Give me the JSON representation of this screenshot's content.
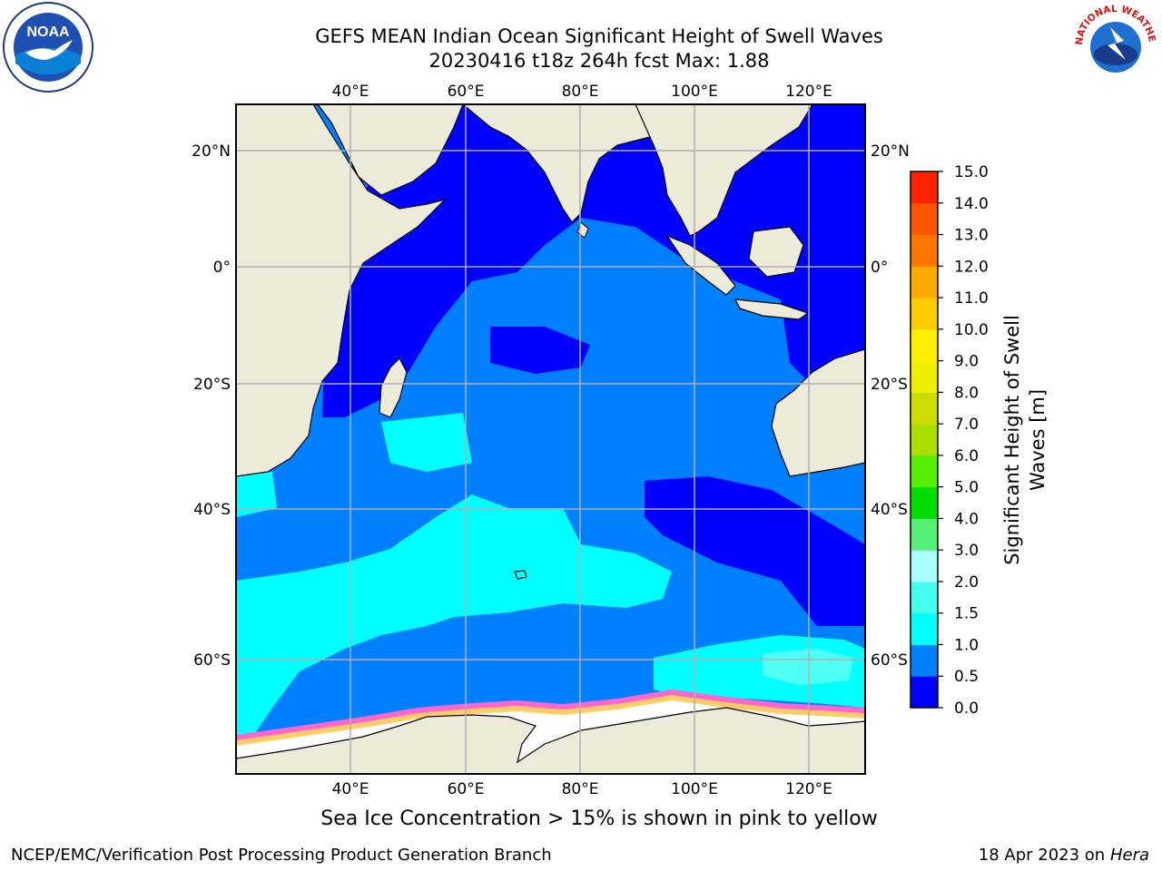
{
  "header": {
    "title_line1": "GEFS MEAN Indian Ocean Significant Height of Swell Waves",
    "title_line2": "20230416 t18z 264h fcst   Max: 1.88"
  },
  "logos": {
    "noaa_text": "NOAA",
    "nws_text": "NATIONAL WEATHER SERVICE"
  },
  "map": {
    "lon_ticks": [
      "40°E",
      "60°E",
      "80°E",
      "100°E",
      "120°E"
    ],
    "lat_ticks": [
      "20°N",
      "0°",
      "20°S",
      "40°S",
      "60°S"
    ],
    "colors": {
      "land": "#ecebda",
      "ocean_deep": "#0000ff",
      "ocean_mid": "#0080ff",
      "swell_high": "#00ffff",
      "swell_higher": "#4ffff4",
      "ice": "#ffffff",
      "ice_edge": "#ff66cc",
      "gridline": "#b0b0b0"
    }
  },
  "colorbar": {
    "title_line1": "Significant Height of Swell",
    "title_line2": "Waves [m]",
    "labels": [
      "0.0",
      "0.5",
      "1.0",
      "1.5",
      "2.0",
      "3.0",
      "4.0",
      "5.0",
      "6.0",
      "7.0",
      "8.0",
      "9.0",
      "10.0",
      "11.0",
      "12.0",
      "13.0",
      "14.0",
      "15.0"
    ],
    "colors": [
      "#0000ff",
      "#0080ff",
      "#00ffff",
      "#44ffee",
      "#aaffff",
      "#55ee77",
      "#00dd00",
      "#55ee00",
      "#aadd00",
      "#ccdd00",
      "#eeee00",
      "#ffee00",
      "#ffcc00",
      "#ffaa00",
      "#ff7700",
      "#ff5500",
      "#ff2200"
    ]
  },
  "footer": {
    "note": "Sea Ice Concentration > 15% is shown in pink to yellow",
    "credit": "NCEP/EMC/Verification Post Processing Product Generation Branch",
    "date_prefix": "18 Apr 2023 on ",
    "machine": "Hera"
  }
}
